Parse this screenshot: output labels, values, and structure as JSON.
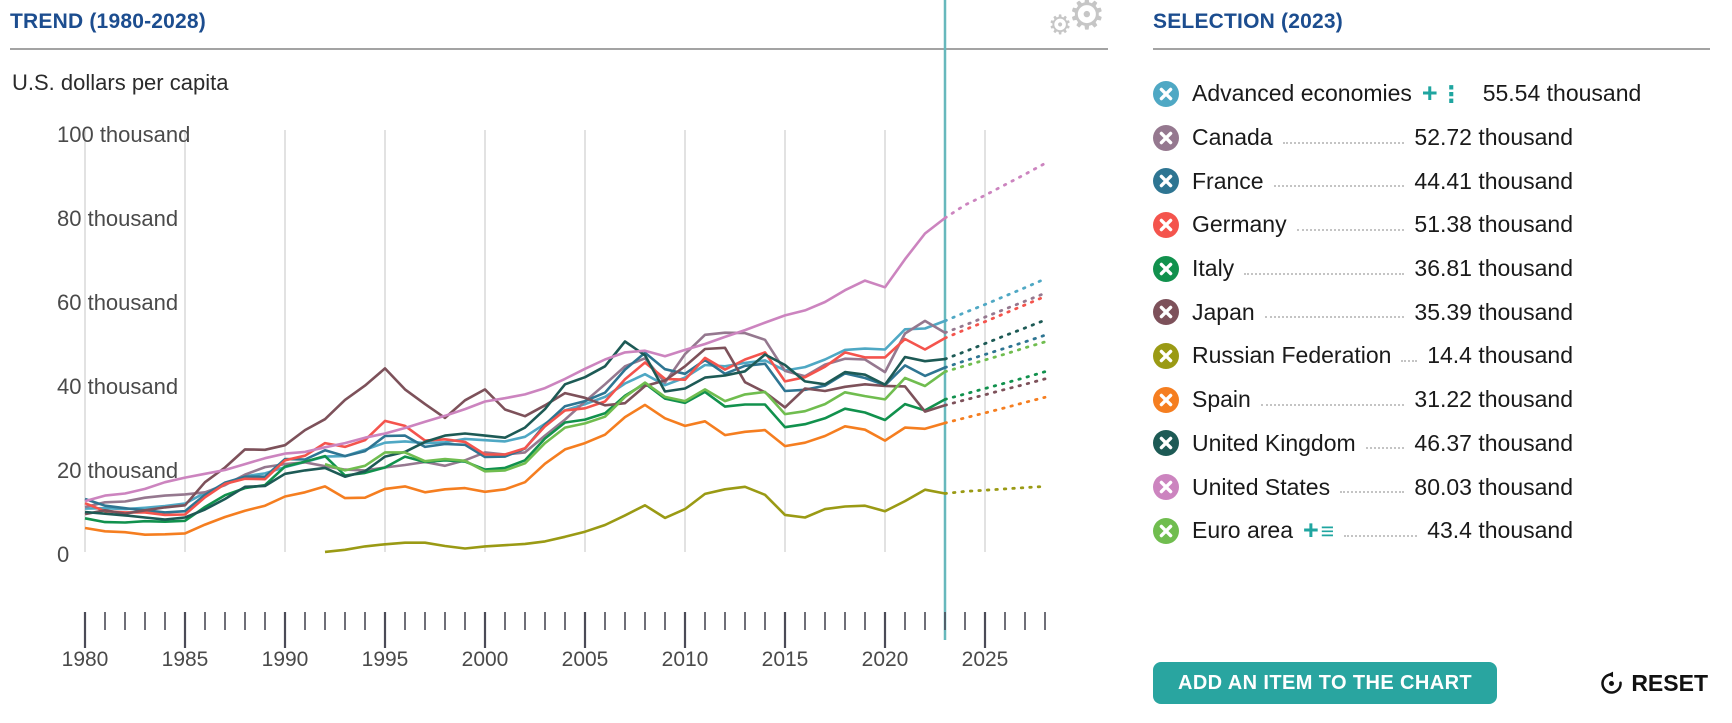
{
  "header": {
    "trend_title": "TREND (1980-2028)",
    "selection_title": "SELECTION (2023)"
  },
  "chart": {
    "unit_label": "U.S. dollars per capita"
  },
  "chart_data": {
    "type": "line",
    "title": "TREND (1980-2028)",
    "ylabel": "U.S. dollars per capita",
    "unit": "thousands of U.S. dollars per capita",
    "x_range": [
      1980,
      2028
    ],
    "projection_start": 2023,
    "marker_year": 2023,
    "ylim": [
      0,
      100
    ],
    "grid": "vertical-only",
    "legend_position": "right-panel",
    "xticks": [
      1980,
      1985,
      1990,
      1995,
      2000,
      2005,
      2010,
      2015,
      2020,
      2025
    ],
    "yticks": [
      {
        "value": 0,
        "label": "0"
      },
      {
        "value": 20,
        "label": "20 thousand"
      },
      {
        "value": 40,
        "label": "40 thousand"
      },
      {
        "value": 60,
        "label": "60 thousand"
      },
      {
        "value": 80,
        "label": "80 thousand"
      },
      {
        "value": 100,
        "label": "100 thousand"
      }
    ],
    "series": [
      {
        "name": "Advanced economies",
        "color": "#4fa8c4",
        "start_year": 1980,
        "value_2023": 55.54,
        "values": [
          10.8,
          10.9,
          10.7,
          11.0,
          11.4,
          12.0,
          14.6,
          16.6,
          18.5,
          19.2,
          20.7,
          21.9,
          23.2,
          23.3,
          24.8,
          26.5,
          26.8,
          26.4,
          26.6,
          27.4,
          27.1,
          26.8,
          27.9,
          31.0,
          34.2,
          35.7,
          37.4,
          40.6,
          42.8,
          40.2,
          42.0,
          45.0,
          44.7,
          45.5,
          46.1,
          43.7,
          44.5,
          46.3,
          48.6,
          48.9,
          48.7,
          53.5,
          53.7,
          55.5,
          57.5,
          59.4,
          61.4,
          63.4,
          65.5
        ]
      },
      {
        "name": "Canada",
        "color": "#95788f",
        "start_year": 1980,
        "value_2023": 52.72,
        "values": [
          11.2,
          12.3,
          12.5,
          13.4,
          13.9,
          14.2,
          14.7,
          16.4,
          18.9,
          20.7,
          21.4,
          21.8,
          20.9,
          20.1,
          19.9,
          20.6,
          21.2,
          21.9,
          21.0,
          22.3,
          24.2,
          23.7,
          24.2,
          28.2,
          32.0,
          36.3,
          40.4,
          44.7,
          46.6,
          40.8,
          47.6,
          52.2,
          52.7,
          52.6,
          51.0,
          43.6,
          42.3,
          45.1,
          46.5,
          46.3,
          43.3,
          52.5,
          55.5,
          52.7,
          54.5,
          56.4,
          58.3,
          60.2,
          62.1
        ]
      },
      {
        "name": "France",
        "color": "#2e7592",
        "start_year": 1980,
        "value_2023": 44.41,
        "values": [
          13.1,
          11.5,
          10.9,
          10.4,
          9.9,
          10.2,
          14.1,
          17.0,
          18.4,
          18.4,
          22.6,
          22.5,
          24.7,
          23.3,
          24.5,
          28.1,
          28.2,
          25.5,
          26.2,
          26.0,
          23.1,
          23.2,
          25.1,
          30.8,
          35.2,
          36.4,
          38.4,
          43.9,
          47.9,
          44.0,
          42.9,
          46.2,
          42.9,
          44.8,
          45.3,
          38.8,
          39.1,
          40.1,
          43.0,
          41.9,
          40.2,
          44.9,
          42.4,
          44.4,
          46.0,
          47.5,
          49.0,
          50.5,
          52.1
        ]
      },
      {
        "name": "Germany",
        "color": "#f4544d",
        "start_year": 1980,
        "value_2023": 51.38,
        "values": [
          12.1,
          10.2,
          9.9,
          9.9,
          9.3,
          9.4,
          13.5,
          16.7,
          17.9,
          17.8,
          22.3,
          23.4,
          26.4,
          25.5,
          27.1,
          31.7,
          30.5,
          27.0,
          27.3,
          26.7,
          23.7,
          23.7,
          25.2,
          30.4,
          34.2,
          34.7,
          36.3,
          41.6,
          45.6,
          41.7,
          41.5,
          46.7,
          43.9,
          46.3,
          48.0,
          41.1,
          42.1,
          44.6,
          48.0,
          46.8,
          46.8,
          51.2,
          48.7,
          51.4,
          53.4,
          55.3,
          57.3,
          59.3,
          61.3
        ]
      },
      {
        "name": "Italy",
        "color": "#11914d",
        "start_year": 1980,
        "value_2023": 36.81,
        "values": [
          8.5,
          7.6,
          7.5,
          7.8,
          7.7,
          7.9,
          11.2,
          14.0,
          15.7,
          16.4,
          20.8,
          22.0,
          23.3,
          18.7,
          19.3,
          20.6,
          23.2,
          21.9,
          22.3,
          22.0,
          20.1,
          20.5,
          22.3,
          27.5,
          31.3,
          32.0,
          33.5,
          37.7,
          40.6,
          37.0,
          36.0,
          38.6,
          35.1,
          35.6,
          35.6,
          30.2,
          30.9,
          32.3,
          34.6,
          33.7,
          31.9,
          35.7,
          34.2,
          36.8,
          38.1,
          39.4,
          40.7,
          42.0,
          43.4
        ]
      },
      {
        "name": "Japan",
        "color": "#7d515a",
        "start_year": 1980,
        "value_2023": 35.39,
        "values": [
          9.5,
          10.4,
          9.6,
          10.4,
          11.1,
          11.6,
          17.1,
          20.6,
          24.9,
          24.8,
          25.9,
          29.5,
          32.1,
          36.7,
          40.1,
          44.2,
          39.2,
          35.7,
          32.4,
          36.6,
          39.2,
          34.4,
          32.8,
          35.4,
          38.3,
          37.2,
          35.4,
          35.9,
          40.0,
          41.3,
          44.7,
          48.8,
          49.1,
          40.9,
          38.5,
          34.9,
          39.4,
          38.8,
          39.8,
          40.4,
          40.0,
          39.9,
          33.9,
          35.4,
          36.7,
          37.9,
          39.2,
          40.4,
          41.7
        ]
      },
      {
        "name": "Russian Federation",
        "color": "#9a9a14",
        "start_year": 1992,
        "value_2023": 14.4,
        "values": [
          0.5,
          1.0,
          1.8,
          2.3,
          2.7,
          2.7,
          1.9,
          1.3,
          1.8,
          2.1,
          2.4,
          3.0,
          4.1,
          5.3,
          6.9,
          9.2,
          11.6,
          8.6,
          10.7,
          14.3,
          15.4,
          16.0,
          14.1,
          9.3,
          8.7,
          10.7,
          11.3,
          11.5,
          10.2,
          12.6,
          15.3,
          14.4,
          14.9,
          15.2,
          15.5,
          15.8,
          16.1
        ]
      },
      {
        "name": "Spain",
        "color": "#f57e20",
        "start_year": 1980,
        "value_2023": 31.22,
        "values": [
          6.2,
          5.4,
          5.2,
          4.6,
          4.7,
          4.9,
          7.0,
          8.8,
          10.3,
          11.5,
          13.7,
          14.7,
          16.1,
          13.3,
          13.4,
          15.5,
          16.1,
          14.7,
          15.4,
          15.7,
          14.8,
          15.4,
          17.1,
          21.5,
          24.9,
          26.4,
          28.4,
          32.6,
          35.5,
          32.3,
          30.5,
          31.6,
          28.3,
          29.1,
          29.5,
          25.7,
          26.5,
          28.1,
          30.4,
          29.6,
          27.0,
          30.1,
          29.8,
          31.2,
          32.4,
          33.6,
          34.8,
          36.1,
          37.3
        ]
      },
      {
        "name": "United Kingdom",
        "color": "#1d5a55",
        "start_year": 1980,
        "value_2023": 46.37,
        "values": [
          10.0,
          9.6,
          9.2,
          8.7,
          8.2,
          8.7,
          10.6,
          13.1,
          16.0,
          16.2,
          19.1,
          19.9,
          20.5,
          18.4,
          19.7,
          23.2,
          24.3,
          26.7,
          28.2,
          28.7,
          28.2,
          27.7,
          30.1,
          34.5,
          40.4,
          42.1,
          44.7,
          50.6,
          47.3,
          38.7,
          39.4,
          42.0,
          42.5,
          43.5,
          47.5,
          45.0,
          41.1,
          40.4,
          43.3,
          42.7,
          40.3,
          46.9,
          45.9,
          46.4,
          48.2,
          50.1,
          52.0,
          53.8,
          55.7
        ]
      },
      {
        "name": "United States",
        "color": "#cc84bf",
        "start_year": 1980,
        "value_2023": 80.03,
        "values": [
          12.6,
          13.9,
          14.4,
          15.5,
          17.1,
          18.2,
          19.1,
          20.0,
          21.4,
          22.8,
          23.9,
          24.3,
          25.4,
          26.4,
          27.7,
          28.7,
          30.0,
          31.5,
          32.9,
          34.5,
          36.3,
          37.1,
          38.0,
          39.5,
          41.7,
          44.1,
          46.3,
          48.0,
          48.4,
          47.1,
          48.6,
          50.0,
          51.7,
          53.3,
          55.1,
          56.8,
          58.0,
          60.0,
          62.8,
          65.1,
          63.5,
          70.2,
          76.3,
          80.0,
          83.1,
          85.4,
          87.9,
          90.4,
          93.0
        ]
      },
      {
        "name": "Euro area",
        "color": "#70bd4f",
        "start_year": 1992,
        "value_2023": 43.4,
        "values": [
          21.4,
          19.9,
          21.0,
          24.2,
          24.2,
          22.1,
          22.6,
          22.2,
          19.7,
          19.9,
          21.6,
          26.4,
          30.1,
          31.1,
          32.7,
          37.4,
          40.8,
          37.4,
          36.4,
          39.2,
          36.4,
          38.0,
          38.6,
          33.3,
          34.0,
          35.7,
          38.5,
          37.6,
          36.8,
          41.9,
          40.0,
          43.4,
          44.8,
          46.2,
          47.6,
          49.1,
          50.5
        ]
      }
    ]
  },
  "selection": {
    "rows": [
      {
        "label": "Advanced economies",
        "value": "55.54 thousand",
        "color": "#4fa8c4",
        "extra": "plus-dots"
      },
      {
        "label": "Canada",
        "value": "52.72 thousand",
        "color": "#95788f",
        "extra": null
      },
      {
        "label": "France",
        "value": "44.41 thousand",
        "color": "#2e7592",
        "extra": null
      },
      {
        "label": "Germany",
        "value": "51.38 thousand",
        "color": "#f4544d",
        "extra": null
      },
      {
        "label": "Italy",
        "value": "36.81 thousand",
        "color": "#11914d",
        "extra": null
      },
      {
        "label": "Japan",
        "value": "35.39 thousand",
        "color": "#7d515a",
        "extra": null
      },
      {
        "label": "Russian Federation",
        "value": "14.4 thousand",
        "color": "#9a9a14",
        "extra": null
      },
      {
        "label": "Spain",
        "value": "31.22 thousand",
        "color": "#f57e20",
        "extra": null
      },
      {
        "label": "United Kingdom",
        "value": "46.37 thousand",
        "color": "#1d5a55",
        "extra": null
      },
      {
        "label": "United States",
        "value": "80.03 thousand",
        "color": "#cc84bf",
        "extra": null
      },
      {
        "label": "Euro area",
        "value": "43.4 thousand",
        "color": "#70bd4f",
        "extra": "plus-lines"
      }
    ]
  },
  "controls": {
    "add_button_label": "ADD AN ITEM TO THE CHART",
    "reset_label": "RESET"
  },
  "style": {
    "accent_teal": "#29a5a0",
    "marker_line": "#67b8bc",
    "title_blue": "#1c4d8f",
    "grid": "#d9d9d9",
    "axis_text": "#4a4a4a",
    "tick": "#4b4b57",
    "rule": "#a3a3a3",
    "gear": "#c6c6c6"
  }
}
